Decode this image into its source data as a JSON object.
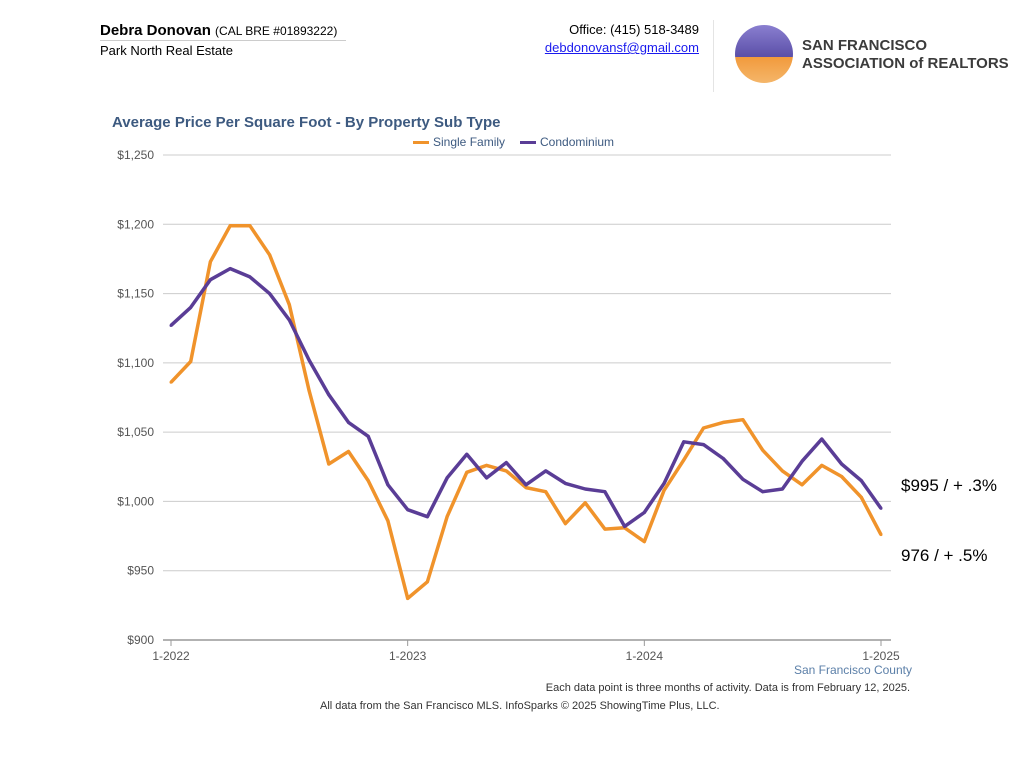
{
  "header": {
    "agent_name": "Debra Donovan",
    "agent_license": "(CAL BRE #01893222)",
    "company": "Park North Real Estate",
    "office": "Office: (415) 518-3489",
    "email": "debdonovansf@gmail.com",
    "logo_text_line1": "SAN FRANCISCO",
    "logo_text_line2": "ASSOCIATION of REALTORS"
  },
  "footer": {
    "county": "San Francisco County",
    "note": "Each data point is three months of activity. Data is from February 12, 2025.",
    "source": "All data from the San Francisco MLS. InfoSparks © 2025 ShowingTime Plus, LLC."
  },
  "chart_data": {
    "type": "line",
    "title": "Average Price Per Square Foot - By Property Sub Type",
    "xlabel": "",
    "ylabel": "",
    "ylim": [
      900,
      1250
    ],
    "yticks": [
      900,
      950,
      1000,
      1050,
      1100,
      1150,
      1200,
      1250
    ],
    "ytick_labels": [
      "$900",
      "$950",
      "$1,000",
      "$1,050",
      "$1,100",
      "$1,150",
      "$1,200",
      "$1,250"
    ],
    "xtick_labels": [
      "1-2022",
      "1-2023",
      "1-2024",
      "1-2025"
    ],
    "xtick_index": [
      0,
      12,
      24,
      36
    ],
    "grid": true,
    "legend_position": "top-center",
    "series": [
      {
        "name": "Single Family",
        "color": "#f0932b",
        "end_label": "976 / + .5%",
        "values": [
          1086,
          1101,
          1173,
          1199,
          1199,
          1178,
          1142,
          1080,
          1027,
          1036,
          1015,
          986,
          930,
          942,
          989,
          1021,
          1026,
          1022,
          1010,
          1007,
          984,
          999,
          980,
          981,
          971,
          1008,
          1030,
          1053,
          1057,
          1059,
          1037,
          1022,
          1012,
          1026,
          1018,
          1003,
          976
        ]
      },
      {
        "name": "Condominium",
        "color": "#5a3d96",
        "end_label": "$995 / + .3%",
        "values": [
          1127,
          1140,
          1160,
          1168,
          1162,
          1150,
          1131,
          1102,
          1077,
          1057,
          1047,
          1012,
          994,
          989,
          1017,
          1034,
          1017,
          1028,
          1012,
          1022,
          1013,
          1009,
          1007,
          982,
          992,
          1013,
          1043,
          1041,
          1031,
          1016,
          1007,
          1009,
          1029,
          1045,
          1027,
          1015,
          995
        ]
      }
    ]
  }
}
